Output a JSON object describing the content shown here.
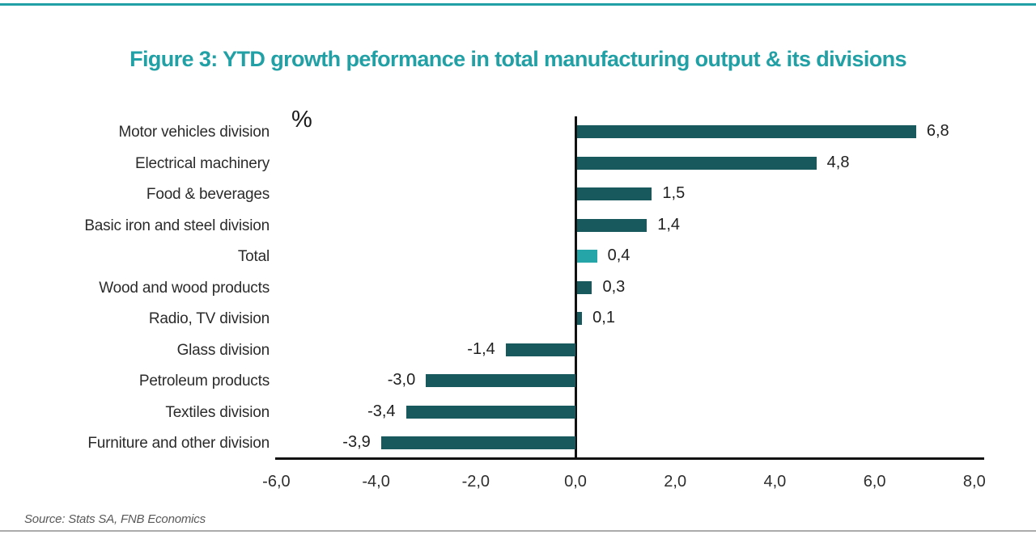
{
  "page": {
    "title": "Figure 3: YTD growth peformance in total manufacturing output & its divisions",
    "title_color": "#21a0a5",
    "top_rule_color": "#21a0a5",
    "bottom_rule_color": "#ababab",
    "source_note": "Source: Stats SA, FNB Economics"
  },
  "chart_data": {
    "type": "bar",
    "orientation": "horizontal",
    "title": "Figure 3: YTD growth peformance in total manufacturing output & its divisions",
    "unit_label": "%",
    "categories": [
      "Motor vehicles division",
      "Electrical machinery",
      "Food & beverages",
      "Basic iron and steel division",
      "Total",
      "Wood and wood products",
      "Radio, TV division",
      "Glass division",
      "Petroleum products",
      "Textiles division",
      "Furniture and other division"
    ],
    "values": [
      6.8,
      4.8,
      1.5,
      1.4,
      0.4,
      0.3,
      0.1,
      -1.4,
      -3.0,
      -3.4,
      -3.9
    ],
    "value_labels": [
      "6,8",
      "4,8",
      "1,5",
      "1,4",
      "0,4",
      "0,3",
      "0,1",
      "-1,4",
      "-3,0",
      "-3,4",
      "-3,9"
    ],
    "bar_color": "#17595d",
    "highlight_color": "#26a5a8",
    "highlight_index": 4,
    "xlim": [
      -6,
      8
    ],
    "x_ticks": [
      {
        "value": -6,
        "label": "-6,0"
      },
      {
        "value": -4,
        "label": "-4,0"
      },
      {
        "value": -2,
        "label": "-2,0"
      },
      {
        "value": 0,
        "label": "0,0"
      },
      {
        "value": 2,
        "label": "2,0"
      },
      {
        "value": 4,
        "label": "4,0"
      },
      {
        "value": 6,
        "label": "6,0"
      },
      {
        "value": 8,
        "label": "8,0"
      }
    ],
    "grid": false,
    "legend": false,
    "decimal_separator": ",",
    "source": "Source: Stats SA, FNB Economics"
  }
}
